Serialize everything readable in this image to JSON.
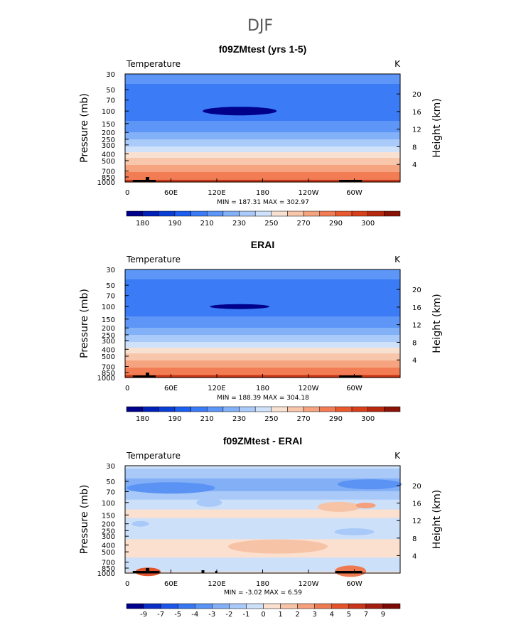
{
  "figure": {
    "suptitle": "DJF",
    "colors": {
      "absolute_scale": [
        "#00008b",
        "#0020b8",
        "#0a3fd6",
        "#1c5ef0",
        "#3b7bf5",
        "#5d96f7",
        "#82b1f8",
        "#aacbf9",
        "#cfe2fa",
        "#f9e1d1",
        "#f8c6aa",
        "#f5a47f",
        "#f27d55",
        "#ea5a2f",
        "#d7401a",
        "#b82a10",
        "#8b1206"
      ],
      "difference_scale": [
        "#00008b",
        "#0a2fc7",
        "#1d55e8",
        "#3676ef",
        "#5a93f4",
        "#82aff6",
        "#a9c9f8",
        "#cde0fa",
        "#fbe0cf",
        "#f7c3a6",
        "#f4a07c",
        "#ee7a52",
        "#e2522b",
        "#c7361a",
        "#a21e10",
        "#7a0a05"
      ]
    }
  },
  "chart_data": [
    {
      "type": "heatmap",
      "title": "f09ZMtest (yrs 1-5)",
      "left_label": "Temperature",
      "units": "K",
      "ylabel": "Pressure (mb)",
      "right_label": "Height (km)",
      "y_ticks": [
        "30",
        "50",
        "70",
        "100",
        "150",
        "200",
        "250",
        "300",
        "400",
        "500",
        "700",
        "850",
        "1000"
      ],
      "y_tick_values": [
        30,
        50,
        70,
        100,
        150,
        200,
        250,
        300,
        400,
        500,
        700,
        850,
        1000
      ],
      "right_ticks": [
        "20",
        "16",
        "12",
        "8",
        "4"
      ],
      "right_tick_values": [
        20,
        16,
        12,
        8,
        4
      ],
      "x_ticks": [
        "0",
        "60E",
        "120E",
        "180",
        "120W",
        "60W"
      ],
      "x_tick_values": [
        0,
        60,
        120,
        180,
        240,
        300
      ],
      "xlim": [
        0,
        360
      ],
      "ylim_mb": [
        1000,
        30
      ],
      "minmax_text": "MIN = 187.31  MAX = 302.97",
      "min": 187.31,
      "max": 302.97,
      "colorbar_labels": [
        "180",
        "190",
        "210",
        "230",
        "250",
        "270",
        "290",
        "300"
      ],
      "colorbar_levels": [
        180,
        185,
        190,
        200,
        210,
        220,
        230,
        240,
        250,
        260,
        270,
        280,
        290,
        295,
        300
      ],
      "field": "absolute",
      "profile_levels": [
        30,
        50,
        70,
        100,
        150,
        200,
        250,
        300,
        400,
        500,
        700,
        850,
        1000
      ],
      "profile_values": [
        214,
        208,
        204,
        202,
        212,
        220,
        230,
        238,
        252,
        264,
        278,
        286,
        292
      ]
    },
    {
      "type": "heatmap",
      "title": "ERAI",
      "left_label": "Temperature",
      "units": "K",
      "ylabel": "Pressure (mb)",
      "right_label": "Height (km)",
      "y_ticks": [
        "30",
        "50",
        "70",
        "100",
        "150",
        "200",
        "250",
        "300",
        "400",
        "500",
        "700",
        "850",
        "1000"
      ],
      "y_tick_values": [
        30,
        50,
        70,
        100,
        150,
        200,
        250,
        300,
        400,
        500,
        700,
        850,
        1000
      ],
      "right_ticks": [
        "20",
        "16",
        "12",
        "8",
        "4"
      ],
      "right_tick_values": [
        20,
        16,
        12,
        8,
        4
      ],
      "x_ticks": [
        "0",
        "60E",
        "120E",
        "180",
        "120W",
        "60W"
      ],
      "x_tick_values": [
        0,
        60,
        120,
        180,
        240,
        300
      ],
      "xlim": [
        0,
        360
      ],
      "ylim_mb": [
        1000,
        30
      ],
      "minmax_text": "MIN = 188.39  MAX = 304.18",
      "min": 188.39,
      "max": 304.18,
      "colorbar_labels": [
        "180",
        "190",
        "210",
        "230",
        "250",
        "270",
        "290",
        "300"
      ],
      "colorbar_levels": [
        180,
        185,
        190,
        200,
        210,
        220,
        230,
        240,
        250,
        260,
        270,
        280,
        290,
        295,
        300
      ],
      "field": "absolute",
      "profile_levels": [
        30,
        50,
        70,
        100,
        150,
        200,
        250,
        300,
        400,
        500,
        700,
        850,
        1000
      ],
      "profile_values": [
        214,
        208,
        204,
        202,
        212,
        220,
        230,
        238,
        253,
        265,
        279,
        287,
        293
      ]
    },
    {
      "type": "heatmap",
      "title": "f09ZMtest - ERAI",
      "left_label": "Temperature",
      "units": "K",
      "ylabel": "Pressure (mb)",
      "right_label": "Height (km)",
      "y_ticks": [
        "30",
        "50",
        "70",
        "100",
        "150",
        "200",
        "250",
        "300",
        "400",
        "500",
        "700",
        "850",
        "1000"
      ],
      "y_tick_values": [
        30,
        50,
        70,
        100,
        150,
        200,
        250,
        300,
        400,
        500,
        700,
        850,
        1000
      ],
      "right_ticks": [
        "20",
        "16",
        "12",
        "8",
        "4"
      ],
      "right_tick_values": [
        20,
        16,
        12,
        8,
        4
      ],
      "x_ticks": [
        "0",
        "60E",
        "120E",
        "180",
        "120W",
        "60W"
      ],
      "x_tick_values": [
        0,
        60,
        120,
        180,
        240,
        300
      ],
      "xlim": [
        0,
        360
      ],
      "ylim_mb": [
        1000,
        30
      ],
      "minmax_text": "MIN = -3.02  MAX = 6.59",
      "min": -3.02,
      "max": 6.59,
      "colorbar_labels": [
        "-9",
        "-7",
        "-5",
        "-4",
        "-3",
        "-2",
        "-1",
        "0",
        "1",
        "2",
        "3",
        "4",
        "5",
        "7",
        "9"
      ],
      "colorbar_levels": [
        -9,
        -7,
        -5,
        -4,
        -3,
        -2,
        -1,
        0,
        1,
        2,
        3,
        4,
        5,
        7,
        9
      ],
      "field": "difference",
      "profile_levels": [
        30,
        50,
        70,
        100,
        150,
        200,
        250,
        300,
        400,
        500,
        700,
        850,
        1000
      ],
      "profile_values": [
        -0.8,
        -2.2,
        -2.0,
        -0.5,
        0.4,
        -0.6,
        -0.5,
        -0.3,
        0.6,
        0.5,
        -0.4,
        -0.8,
        0.2
      ]
    }
  ]
}
